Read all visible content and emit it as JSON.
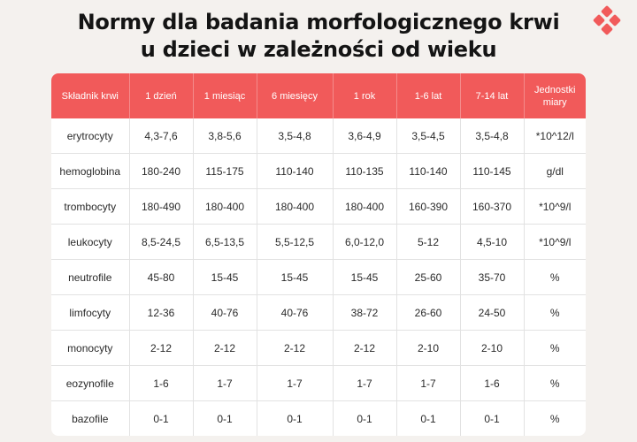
{
  "title_lines": [
    "Normy dla badania morfologicznego krwi",
    "u dzieci w zależności od wieku"
  ],
  "logo_icon": "four-diamonds-logo-icon",
  "colors": {
    "accent": "#f15a5a",
    "background": "#f4f1ee",
    "table_bg": "#ffffff"
  },
  "table": {
    "headers": [
      "Składnik krwi",
      "1 dzień",
      "1 miesiąc",
      "6 miesięcy",
      "1 rok",
      "1-6 lat",
      "7-14 lat",
      "Jednostki miary"
    ],
    "rows": [
      [
        "erytrocyty",
        "4,3-7,6",
        "3,8-5,6",
        "3,5-4,8",
        "3,6-4,9",
        "3,5-4,5",
        "3,5-4,8",
        "*10^12/l"
      ],
      [
        "hemoglobina",
        "180-240",
        "115-175",
        "110-140",
        "110-135",
        "110-140",
        "110-145",
        "g/dl"
      ],
      [
        "trombocyty",
        "180-490",
        "180-400",
        "180-400",
        "180-400",
        "160-390",
        "160-370",
        "*10^9/l"
      ],
      [
        "leukocyty",
        "8,5-24,5",
        "6,5-13,5",
        "5,5-12,5",
        "6,0-12,0",
        "5-12",
        "4,5-10",
        "*10^9/l"
      ],
      [
        "neutrofile",
        "45-80",
        "15-45",
        "15-45",
        "15-45",
        "25-60",
        "35-70",
        "%"
      ],
      [
        "limfocyty",
        "12-36",
        "40-76",
        "40-76",
        "38-72",
        "26-60",
        "24-50",
        "%"
      ],
      [
        "monocyty",
        "2-12",
        "2-12",
        "2-12",
        "2-12",
        "2-10",
        "2-10",
        "%"
      ],
      [
        "eozynofile",
        "1-6",
        "1-7",
        "1-7",
        "1-7",
        "1-7",
        "1-6",
        "%"
      ],
      [
        "bazofile",
        "0-1",
        "0-1",
        "0-1",
        "0-1",
        "0-1",
        "0-1",
        "%"
      ]
    ]
  }
}
